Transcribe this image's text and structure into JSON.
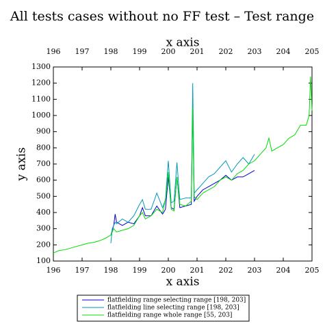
{
  "chart_data": {
    "type": "line",
    "title": "All tests cases without no FF test – Test range",
    "xlabel": "x axis",
    "ylabel": "y axis",
    "xlim": [
      196,
      205
    ],
    "xticks": [
      196,
      197,
      198,
      199,
      200,
      201,
      202,
      203,
      204,
      205
    ],
    "ylim": [
      100,
      1300
    ],
    "yticks": [
      100,
      200,
      300,
      400,
      500,
      600,
      700,
      800,
      900,
      1000,
      1100,
      1200,
      1300
    ],
    "legend": "bottom",
    "series": [
      {
        "name": "flatfielding range selecting range [198, 203]",
        "color": "#0000cc",
        "x": [
          198.0,
          198.1,
          198.15,
          198.2,
          198.4,
          198.6,
          198.8,
          199.0,
          199.1,
          199.2,
          199.4,
          199.6,
          199.8,
          199.9,
          200.0,
          200.1,
          200.2,
          200.3,
          200.4,
          200.6,
          200.8,
          200.85,
          200.9,
          201.0,
          201.2,
          201.4,
          201.6,
          201.8,
          202.0,
          202.2,
          202.4,
          202.6,
          202.8,
          203.0
        ],
        "values": [
          260,
          320,
          390,
          340,
          320,
          340,
          330,
          380,
          430,
          380,
          380,
          440,
          390,
          420,
          620,
          430,
          420,
          620,
          430,
          440,
          450,
          1050,
          470,
          500,
          540,
          560,
          580,
          600,
          630,
          600,
          620,
          620,
          640,
          660
        ]
      },
      {
        "name": "flatfielding line selecting range [198, 203]",
        "color": "#0099bb",
        "x": [
          198.0,
          198.05,
          198.15,
          198.2,
          198.4,
          198.6,
          198.8,
          199.0,
          199.1,
          199.2,
          199.4,
          199.6,
          199.8,
          199.9,
          200.0,
          200.1,
          200.2,
          200.3,
          200.4,
          200.6,
          200.8,
          200.85,
          200.9,
          201.0,
          201.2,
          201.4,
          201.6,
          201.8,
          202.0,
          202.2,
          202.4,
          202.6,
          202.8,
          203.0
        ],
        "values": [
          210,
          300,
          340,
          330,
          360,
          340,
          380,
          450,
          480,
          420,
          420,
          520,
          430,
          480,
          720,
          460,
          470,
          710,
          480,
          490,
          490,
          1200,
          520,
          540,
          580,
          620,
          640,
          680,
          720,
          650,
          700,
          740,
          700,
          760
        ]
      },
      {
        "name": "flatfielding range whole range [55, 203]",
        "color": "#00dd00",
        "x": [
          196.0,
          196.2,
          196.4,
          196.6,
          196.8,
          197.0,
          197.2,
          197.4,
          197.6,
          197.8,
          198.0,
          198.1,
          198.2,
          198.4,
          198.6,
          198.8,
          199.0,
          199.1,
          199.2,
          199.4,
          199.6,
          199.8,
          199.9,
          200.0,
          200.1,
          200.2,
          200.3,
          200.4,
          200.6,
          200.8,
          200.85,
          200.9,
          201.0,
          201.2,
          201.4,
          201.6,
          201.8,
          202.0,
          202.2,
          202.4,
          202.6,
          202.8,
          203.0,
          203.2,
          203.4,
          203.5,
          203.6,
          203.8,
          204.0,
          204.2,
          204.4,
          204.6,
          204.8,
          204.9,
          204.95,
          205.0
        ],
        "values": [
          150,
          165,
          170,
          180,
          190,
          200,
          210,
          215,
          225,
          240,
          260,
          300,
          280,
          290,
          300,
          320,
          380,
          400,
          360,
          380,
          420,
          400,
          480,
          650,
          420,
          410,
          620,
          450,
          440,
          470,
          1050,
          500,
          480,
          520,
          540,
          560,
          600,
          620,
          600,
          640,
          660,
          700,
          720,
          760,
          800,
          860,
          780,
          800,
          820,
          860,
          880,
          940,
          940,
          1000,
          1240,
          1030
        ]
      }
    ]
  }
}
